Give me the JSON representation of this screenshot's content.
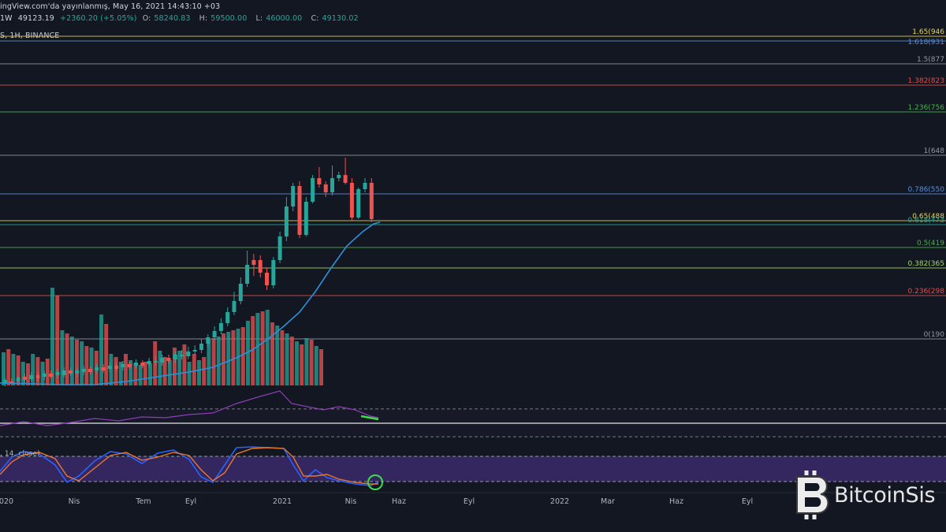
{
  "header": {
    "published": "ingView.com'da yayınlanmış, May 16, 2021 14:43:10 +03",
    "interval": "1W",
    "price": "49123.19",
    "change": "+2360.20 (+5.05%)",
    "open_label": "O:",
    "open": "58240.83",
    "high_label": "H:",
    "high": "59500.00",
    "low_label": "L:",
    "low": "46000.00",
    "close_label": "C:",
    "close": "49130.02",
    "symbol_line": "S, 1H, BINANCE"
  },
  "fib_levels": [
    {
      "label": "1.65(946",
      "color": "#e6d35a"
    },
    {
      "label": "1.618(931",
      "color": "#5b8ed9"
    },
    {
      "label": "1.5(877",
      "color": "#9598a1"
    },
    {
      "label": "1.382(823",
      "color": "#e04f4f"
    },
    {
      "label": "1.236(756",
      "color": "#4caf50"
    },
    {
      "label": "1(648",
      "color": "#9598a1"
    },
    {
      "label": "0.786(550",
      "color": "#5b8ed9"
    },
    {
      "label": "0.65(488",
      "color": "#e6d35a"
    },
    {
      "label": "0.618(473",
      "color": "#26a69a"
    },
    {
      "label": "0.5(419",
      "color": "#4caf50"
    },
    {
      "label": "0.382(365",
      "color": "#a5d66b"
    },
    {
      "label": "0.236(298",
      "color": "#e04f4f"
    },
    {
      "label": "0(190",
      "color": "#9598a1"
    }
  ],
  "stoch_label": ", 14, close)",
  "x_axis": [
    "020",
    "Nis",
    "Tem",
    "Eyl",
    "2021",
    "Nis",
    "Haz",
    "Eyl",
    "2022",
    "Mar",
    "Haz",
    "Eyl"
  ],
  "logo": {
    "text": "BitcoinSis",
    "icon": "bitcoin-icon"
  },
  "colors": {
    "background": "#131722",
    "up": "#26a69a",
    "down": "#ef5350",
    "ma": "#2f8fd8",
    "rsi": "#8e3fb7",
    "stoch_band": "#3b2a6b"
  }
}
